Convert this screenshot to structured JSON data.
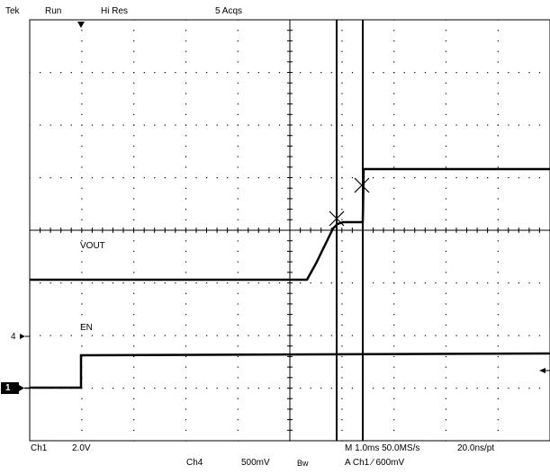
{
  "status_bar": {
    "brand": "Tek",
    "run_state": "Run",
    "acq_mode": "Hi Res",
    "acq_count": "5 Acqs"
  },
  "traces": {
    "vout_label": "VOUT",
    "en_label": "EN",
    "ch4_marker": "4",
    "ch1_marker": "1"
  },
  "readout": {
    "ch1_name": "Ch1",
    "ch1_scale": "2.0V",
    "ch4_name": "Ch4",
    "ch4_scale": "500mV",
    "bw_flag": "Bw",
    "timebase": "M 1.0ms 50.0MS/s",
    "resolution": "20.0ns/pt",
    "trigger": "A  Ch1  ∕  600mV"
  },
  "colors": {
    "trace": "#000000",
    "grid": "#000000",
    "background": "#ffffff"
  }
}
